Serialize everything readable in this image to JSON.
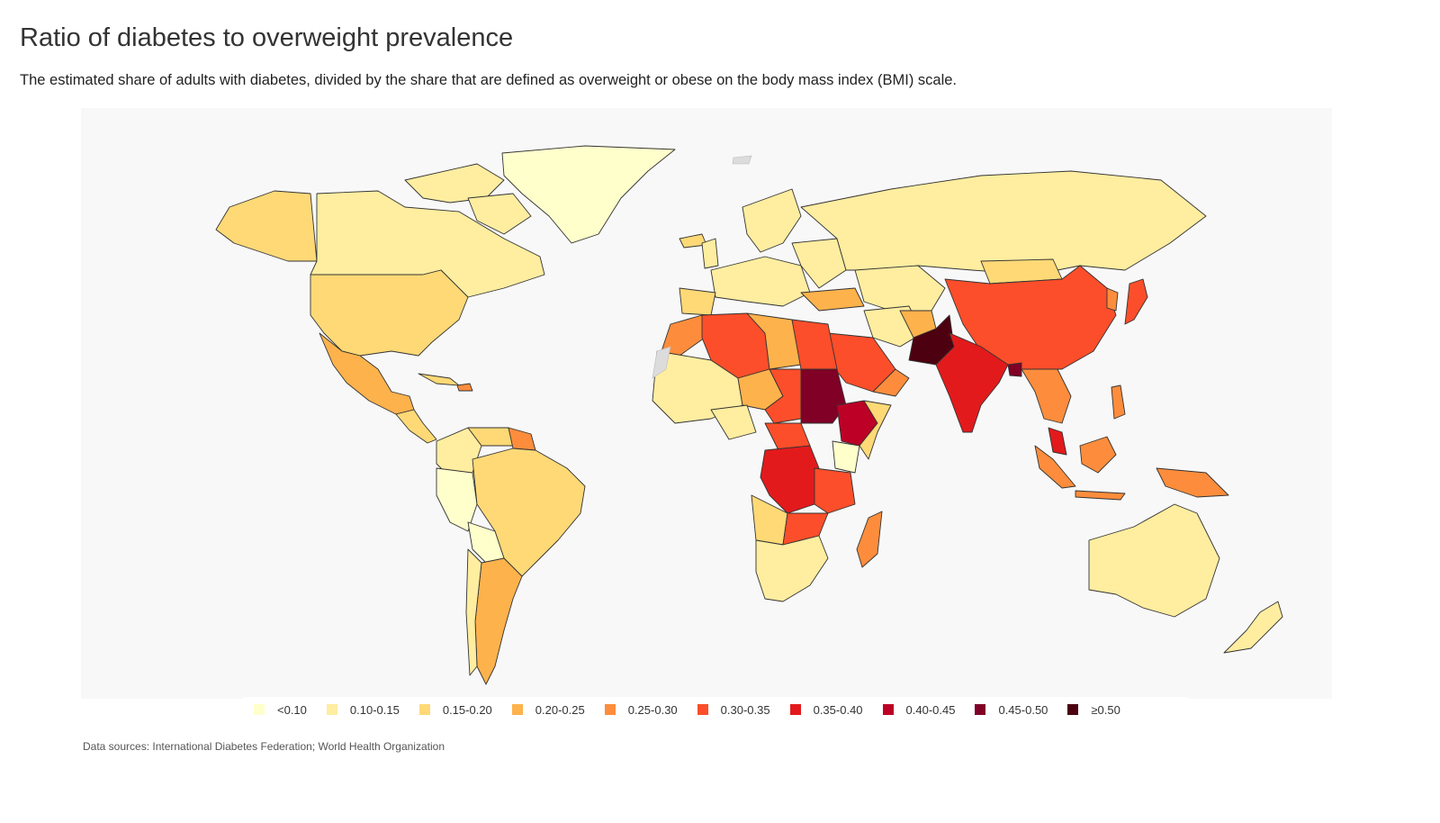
{
  "title": "Ratio of diabetes to overweight prevalence",
  "subtitle": "The estimated share of adults with diabetes, divided by the share that are defined as overweight or obese on the body mass index (BMI) scale.",
  "source": "Data sources: International Diabetes Federation; World Health Organization",
  "legend": [
    {
      "label": "<0.10",
      "color": "#ffffcc"
    },
    {
      "label": "0.10-0.15",
      "color": "#ffeda0"
    },
    {
      "label": "0.15-0.20",
      "color": "#fed976"
    },
    {
      "label": "0.20-0.25",
      "color": "#feb24c"
    },
    {
      "label": "0.25-0.30",
      "color": "#fd8d3c"
    },
    {
      "label": "0.30-0.35",
      "color": "#fc4e2a"
    },
    {
      "label": "0.35-0.40",
      "color": "#e31a1c"
    },
    {
      "label": "0.40-0.45",
      "color": "#bd0026"
    },
    {
      "label": "0.45-0.50",
      "color": "#800026"
    },
    {
      "label": "≥0.50",
      "color": "#4d0010"
    }
  ],
  "no_data_color": "#dcdcdc"
}
